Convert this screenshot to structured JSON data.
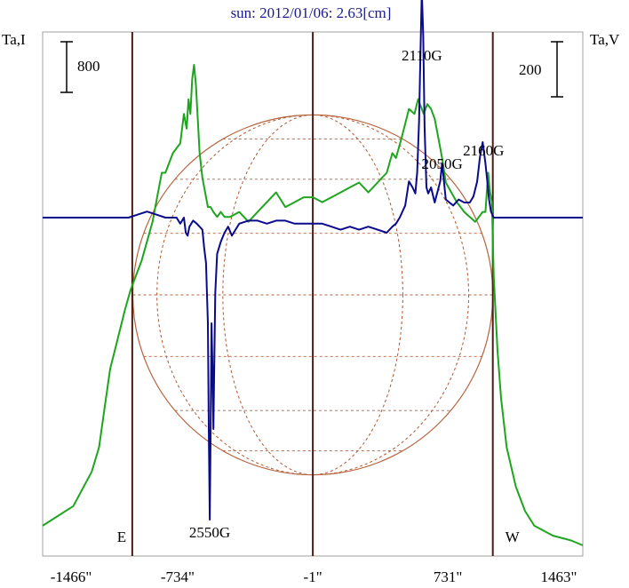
{
  "chart_data": {
    "type": "line",
    "title": "sun: 2012/01/06: 2.63[cm]",
    "left_axis_label": "Ta,I",
    "right_axis_label": "Ta,V",
    "left_scale_label": "800",
    "right_scale_label": "200",
    "x_ticks": [
      {
        "value": -1466,
        "label": "-1466\""
      },
      {
        "value": -734,
        "label": "-734\""
      },
      {
        "value": -1,
        "label": "-1\""
      },
      {
        "value": 731,
        "label": "731\""
      },
      {
        "value": 1463,
        "label": "1463\""
      }
    ],
    "xlim": [
      -1466,
      1463
    ],
    "limb_markers": [
      {
        "x": -980,
        "label": "E"
      },
      {
        "x": 975,
        "label": "W"
      }
    ],
    "center_line_x": -1,
    "disk_radius_arcsec": 976,
    "annotations": [
      {
        "text": "2110G",
        "x": 590
      },
      {
        "text": "2050G",
        "x": 700
      },
      {
        "text": "2160G",
        "x": 925
      },
      {
        "text": "2550G",
        "x": -560
      }
    ],
    "series": [
      {
        "key": "intensity",
        "color": "#1ea51e",
        "x": [
          -1466,
          -1300,
          -1200,
          -1160,
          -1130,
          -1100,
          -1060,
          -1020,
          -990,
          -960,
          -930,
          -900,
          -870,
          -840,
          -820,
          -800,
          -780,
          -760,
          -740,
          -720,
          -700,
          -685,
          -675,
          -665,
          -655,
          -645,
          -635,
          -625,
          -615,
          -600,
          -585,
          -570,
          -555,
          -540,
          -520,
          -500,
          -480,
          -450,
          -400,
          -350,
          -300,
          -250,
          -200,
          -150,
          -100,
          -50,
          0,
          50,
          100,
          150,
          200,
          250,
          300,
          350,
          400,
          430,
          450,
          480,
          500,
          520,
          550,
          570,
          600,
          620,
          640,
          660,
          680,
          700,
          720,
          750,
          780,
          800,
          820,
          850,
          880,
          900,
          920,
          935,
          950,
          960,
          970,
          980,
          1000,
          1020,
          1050,
          1100,
          1150,
          1200,
          1300,
          1400,
          1463
        ],
        "values": [
          0.04,
          0.08,
          0.15,
          0.2,
          0.28,
          0.36,
          0.42,
          0.48,
          0.52,
          0.55,
          0.58,
          0.62,
          0.66,
          0.72,
          0.76,
          0.76,
          0.78,
          0.8,
          0.81,
          0.82,
          0.88,
          0.85,
          0.91,
          0.88,
          0.95,
          0.98,
          0.94,
          0.87,
          0.8,
          0.75,
          0.72,
          0.69,
          0.69,
          0.68,
          0.67,
          0.68,
          0.67,
          0.67,
          0.68,
          0.66,
          0.68,
          0.7,
          0.72,
          0.69,
          0.7,
          0.71,
          0.71,
          0.7,
          0.71,
          0.72,
          0.73,
          0.74,
          0.72,
          0.74,
          0.76,
          0.8,
          0.79,
          0.83,
          0.86,
          0.89,
          0.88,
          0.91,
          0.88,
          0.9,
          0.89,
          0.87,
          0.83,
          0.79,
          0.74,
          0.72,
          0.7,
          0.69,
          0.68,
          0.67,
          0.66,
          0.67,
          0.68,
          0.68,
          0.76,
          0.72,
          0.7,
          0.55,
          0.4,
          0.3,
          0.2,
          0.12,
          0.07,
          0.04,
          0.02,
          0.01,
          0.0
        ]
      },
      {
        "key": "circular_polarization",
        "color": "#0a0a8c",
        "x": [
          -1466,
          -1300,
          -1200,
          -1100,
          -1000,
          -950,
          -900,
          -850,
          -800,
          -760,
          -740,
          -720,
          -700,
          -690,
          -680,
          -670,
          -650,
          -630,
          -600,
          -590,
          -580,
          -570,
          -565,
          -560,
          -555,
          -550,
          -545,
          -540,
          -530,
          -520,
          -500,
          -480,
          -460,
          -440,
          -420,
          -400,
          -350,
          -300,
          -250,
          -200,
          -150,
          -100,
          -50,
          0,
          50,
          100,
          150,
          200,
          250,
          300,
          350,
          400,
          430,
          450,
          470,
          500,
          520,
          540,
          555,
          565,
          575,
          583,
          590,
          598,
          605,
          615,
          625,
          640,
          660,
          690,
          700,
          710,
          720,
          740,
          760,
          790,
          820,
          850,
          870,
          890,
          905,
          920,
          935,
          945,
          955,
          965,
          980,
          1000,
          1050,
          1100,
          1200,
          1300,
          1463
        ],
        "values": [
          0.0,
          0.0,
          0.0,
          0.0,
          0.0,
          0.01,
          0.02,
          0.01,
          0.0,
          0.0,
          0.0,
          -0.02,
          0.0,
          -0.05,
          -0.06,
          -0.03,
          -0.01,
          -0.02,
          -0.04,
          -0.1,
          -0.15,
          -0.35,
          -0.7,
          -1.0,
          -0.7,
          -0.35,
          -0.5,
          -0.7,
          -0.25,
          -0.12,
          -0.08,
          -0.05,
          -0.03,
          -0.06,
          -0.04,
          -0.02,
          -0.01,
          -0.01,
          -0.02,
          -0.01,
          -0.01,
          -0.02,
          -0.02,
          -0.02,
          -0.02,
          -0.03,
          -0.04,
          -0.03,
          -0.04,
          -0.03,
          -0.04,
          -0.05,
          -0.03,
          -0.02,
          0.0,
          0.04,
          0.12,
          0.1,
          0.08,
          0.15,
          0.32,
          0.55,
          0.75,
          0.6,
          0.3,
          0.1,
          0.08,
          0.1,
          0.05,
          0.12,
          0.18,
          0.12,
          0.06,
          0.05,
          0.04,
          0.06,
          0.05,
          0.05,
          0.07,
          0.12,
          0.2,
          0.25,
          0.18,
          0.12,
          0.06,
          0.02,
          0.0,
          0.0,
          0.0,
          0.0,
          0.0,
          0.0,
          0.0
        ]
      }
    ]
  }
}
